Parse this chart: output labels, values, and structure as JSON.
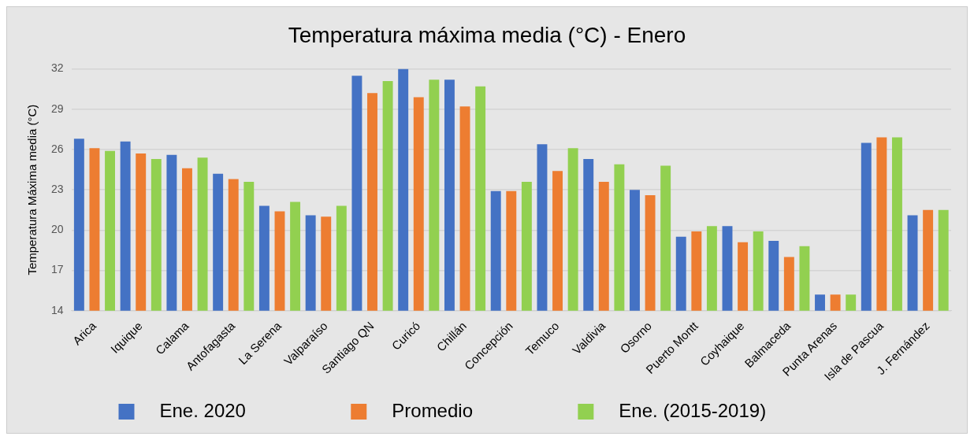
{
  "chart_data": {
    "type": "bar",
    "title": "Temperatura máxima media (°C) - Enero",
    "ylabel": "Temperatura Máxima media (°C)",
    "categories": [
      "Arica",
      "Iquique",
      "Calama",
      "Antofagasta",
      "La Serena",
      "Valparaíso",
      "Santiago QN",
      "Curicó",
      "Chillán",
      "Concepción",
      "Temuco",
      "Valdivia",
      "Osorno",
      "Puerto Montt",
      "Coyhaique",
      "Balmaceda",
      "Punta Arenas",
      "Isla de Pascua",
      "J. Fernández"
    ],
    "series": [
      {
        "name": "Ene. 2020",
        "color": "#4472c4",
        "values": [
          26.8,
          26.6,
          25.6,
          24.2,
          21.8,
          21.1,
          31.5,
          32.0,
          31.2,
          22.9,
          26.4,
          25.3,
          23.0,
          19.5,
          20.3,
          19.2,
          15.2,
          26.5,
          21.1
        ]
      },
      {
        "name": "Promedio",
        "color": "#ed7d31",
        "values": [
          26.1,
          25.7,
          24.6,
          23.8,
          21.4,
          21.0,
          30.2,
          29.9,
          29.2,
          22.9,
          24.4,
          23.6,
          22.6,
          19.9,
          19.1,
          18.0,
          15.2,
          26.9,
          21.5
        ]
      },
      {
        "name": "Ene. (2015-2019)",
        "color": "#92d050",
        "values": [
          25.9,
          25.3,
          25.4,
          23.6,
          22.1,
          21.8,
          31.1,
          31.2,
          30.7,
          23.6,
          26.1,
          24.9,
          24.8,
          20.3,
          19.9,
          18.8,
          15.2,
          26.9,
          21.5
        ]
      }
    ],
    "ylim": [
      14,
      32
    ],
    "yticks": [
      14,
      17,
      20,
      23,
      26,
      29,
      32
    ],
    "grid": "y",
    "legend": "bottom"
  }
}
